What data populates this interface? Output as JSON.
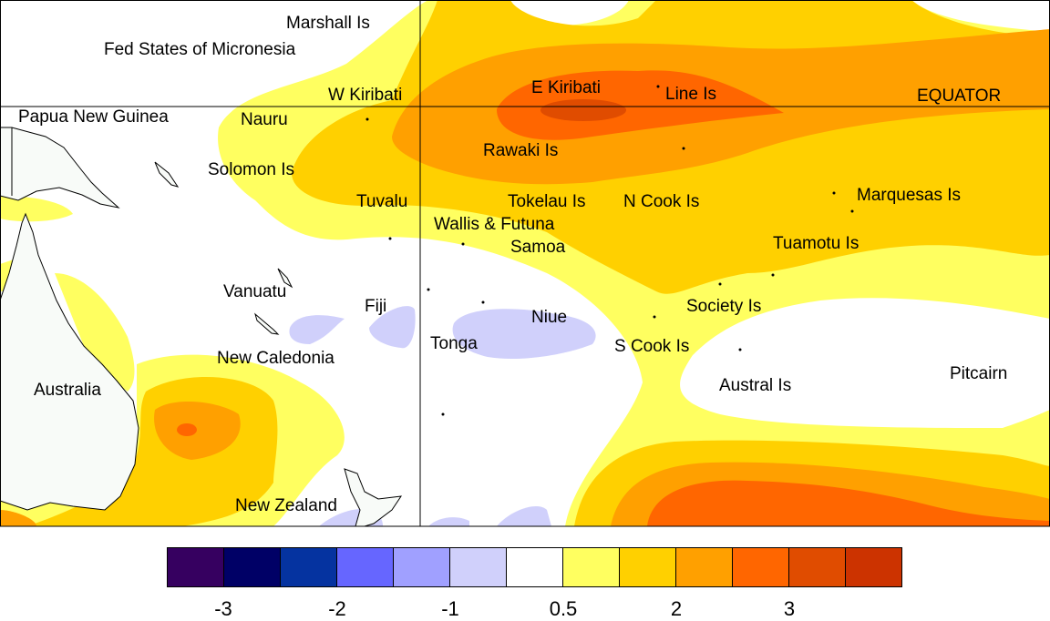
{
  "map": {
    "labels": {
      "marshall": "Marshall Is",
      "micronesia": "Fed States of Micronesia",
      "w_kiribati": "W Kiribati",
      "e_kiribati": "E Kiribati",
      "line": "Line Is",
      "equator": "EQUATOR",
      "png": "Papua New Guinea",
      "nauru": "Nauru",
      "rawaki": "Rawaki Is",
      "solomon": "Solomon Is",
      "tuvalu": "Tuvalu",
      "tokelau": "Tokelau Is",
      "ncook": "N Cook Is",
      "marquesas": "Marquesas Is",
      "wallis": "Wallis & Futuna",
      "samoa": "Samoa",
      "tuamotu": "Tuamotu Is",
      "vanuatu": "Vanuatu",
      "fiji": "Fiji",
      "society": "Society Is",
      "niue": "Niue",
      "tonga": "Tonga",
      "scook": "S Cook Is",
      "newcal": "New Caledonia",
      "australia": "Australia",
      "austral": "Austral Is",
      "pitcairn": "Pitcairn",
      "nz": "New Zealand"
    }
  },
  "colorbar": {
    "colors": [
      "#360060",
      "#000066",
      "#0533a0",
      "#6666ff",
      "#a0a0ff",
      "#d0d0fb",
      "#ffffff",
      "#ffff60",
      "#ffd000",
      "#ffa000",
      "#ff6600",
      "#e04c00",
      "#cc3300"
    ],
    "ticks": [
      "-3",
      "-2",
      "-1",
      "0.5",
      "2",
      "3"
    ]
  },
  "colors": {
    "land": "#f8fbf8"
  }
}
